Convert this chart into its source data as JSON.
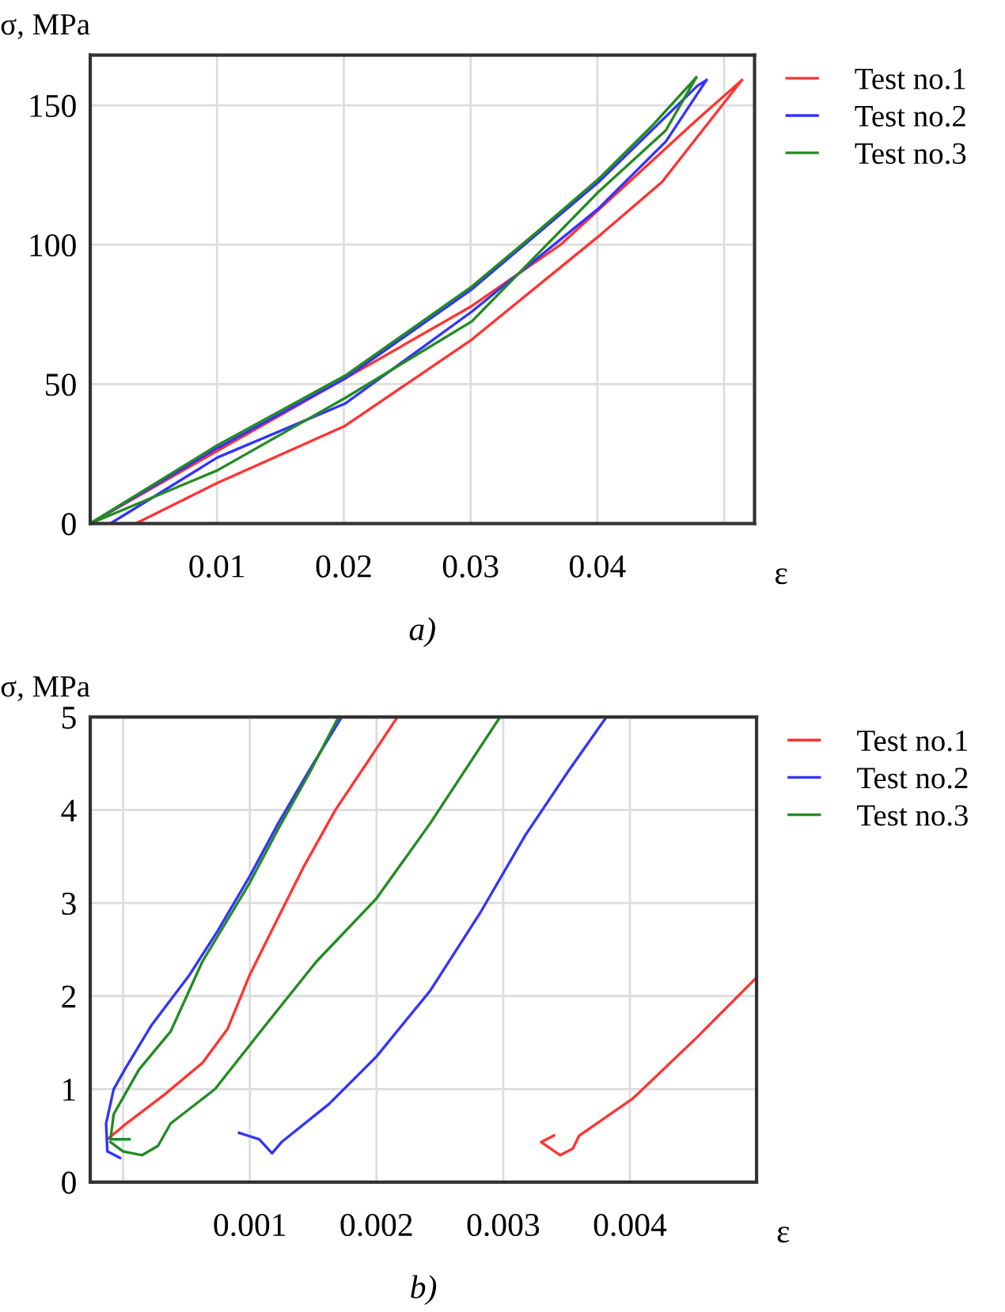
{
  "chart_data": [
    {
      "type": "line",
      "ylabel": "σ, MPa",
      "xlabel": "ε",
      "annotations": [
        "a)"
      ],
      "xlim": [
        0,
        0.0524
      ],
      "ylim": [
        0,
        168
      ],
      "xticks": [
        0.01,
        0.02,
        0.03,
        0.04,
        {
          "value": 0.05,
          "label": null
        }
      ],
      "yticks": [
        0,
        50,
        100,
        150
      ],
      "grid": true,
      "legend": "top right",
      "series": [
        {
          "name": "Test no.1",
          "color": "#ff3333",
          "x": [
            0.0036,
            0.01,
            0.0201,
            0.0301,
            0.0401,
            0.0451,
            0.0514,
            null,
            0.0514,
            0.0479,
            0.0371,
            0.0301,
            0.0201,
            0.01,
            0
          ],
          "values": [
            0,
            14.5,
            35,
            66,
            103,
            122.5,
            159,
            null,
            159,
            145,
            100,
            78,
            52,
            26,
            0
          ]
        },
        {
          "name": "Test no.2",
          "color": "#3333ff",
          "x": [
            0.0016,
            0.01,
            0.0201,
            0.0301,
            0.0401,
            0.0454,
            0.0486,
            null,
            0.0486,
            0.0479,
            0.0401,
            0.0301,
            0.0201,
            0.01,
            0
          ],
          "values": [
            0,
            23.6,
            43,
            76,
            113,
            137,
            159,
            null,
            159,
            157,
            122.5,
            84,
            52,
            27,
            0
          ]
        },
        {
          "name": "Test no.3",
          "color": "#228b22",
          "x": [
            0,
            0.01,
            0.0201,
            0.0301,
            0.0401,
            0.0454,
            0.0478,
            null,
            0.0478,
            0.0444,
            0.0401,
            0.0351,
            0.0301,
            0.0201,
            0.01,
            0
          ],
          "values": [
            0,
            19,
            45,
            72.5,
            119,
            141,
            160,
            null,
            160,
            143,
            123.6,
            104,
            85,
            53,
            28,
            0
          ]
        }
      ]
    },
    {
      "type": "line",
      "ylabel": "σ, MPa",
      "xlabel": "ε",
      "annotations": [
        "b)"
      ],
      "xlim": [
        -0.00026,
        0.005
      ],
      "ylim": [
        0,
        5
      ],
      "xticks": [
        {
          "value": 0,
          "label": null
        },
        0.001,
        0.002,
        0.003,
        0.004
      ],
      "yticks": [
        0,
        1,
        2,
        3,
        4,
        5
      ],
      "grid": true,
      "legend": "top right",
      "series": [
        {
          "name": "Test no.1",
          "color": "#ff3333",
          "x": [
            -0.000125,
            2.5e-05,
            0.000325,
            0.000625,
            0.000825,
            0.001,
            0.001175,
            0.001425,
            0.001675,
            0.001975,
            0.002165,
            null,
            0.0034,
            0.0033,
            0.00345,
            0.00355,
            0.0036,
            0.004025,
            0.004525,
            0.005
          ],
          "values": [
            0.46,
            0.63,
            0.94,
            1.28,
            1.65,
            2.23,
            2.71,
            3.39,
            4.0,
            4.61,
            5.0,
            null,
            0.5,
            0.43,
            0.29,
            0.36,
            0.5,
            0.9,
            1.55,
            2.2
          ]
        },
        {
          "name": "Test no.2",
          "color": "#3333ff",
          "x": [
            -2.5e-05,
            -0.000125,
            -0.000135,
            -7.5e-05,
            2.5e-05,
            0.000225,
            0.000525,
            0.00075,
            0.001,
            0.001225,
            0.001475,
            0.001725,
            null,
            0.000915,
            0.001075,
            0.001175,
            0.00125,
            0.001625,
            0.002,
            0.002425,
            0.002825,
            0.003175,
            0.003525,
            0.003815
          ],
          "values": [
            0.26,
            0.33,
            0.63,
            1.0,
            1.24,
            1.69,
            2.23,
            2.71,
            3.29,
            3.86,
            4.44,
            5.0,
            null,
            0.53,
            0.46,
            0.31,
            0.43,
            0.84,
            1.35,
            2.06,
            2.91,
            3.73,
            4.44,
            5.0
          ]
        },
        {
          "name": "Test no.3",
          "color": "#228b22",
          "x": [
            5e-05,
            -0.0001,
            -7.5e-05,
            0.000125,
            0.000375,
            0.000625,
            0.001,
            0.001225,
            0.001475,
            0.0017,
            null,
            -0.0001,
            0,
            0.00015,
            0.000275,
            0.000375,
            0.000725,
            0.001125,
            0.001525,
            0.002,
            0.002425,
            0.002975
          ],
          "values": [
            0.46,
            0.46,
            0.73,
            1.21,
            1.62,
            2.37,
            3.22,
            3.8,
            4.41,
            5.0,
            null,
            0.43,
            0.33,
            0.29,
            0.39,
            0.63,
            1.0,
            1.69,
            2.37,
            3.05,
            3.86,
            5.0
          ]
        }
      ]
    }
  ]
}
